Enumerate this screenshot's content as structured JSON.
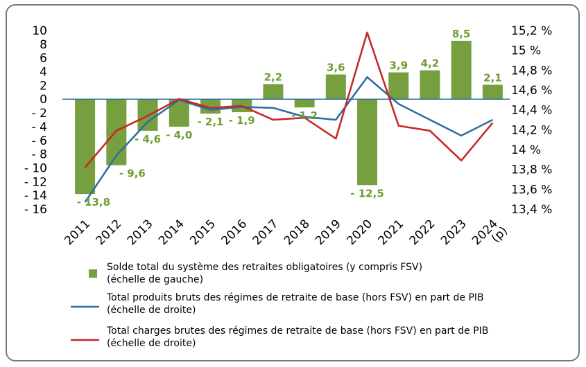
{
  "chart_data": {
    "type": "bar",
    "categories": [
      "2011",
      "2012",
      "2013",
      "2014",
      "2015",
      "2016",
      "2017",
      "2018",
      "2019",
      "2020",
      "2021",
      "2022",
      "2023",
      "2024"
    ],
    "category_sublabels": [
      "",
      "",
      "",
      "",
      "",
      "",
      "",
      "",
      "",
      "",
      "",
      "",
      "",
      "(p)"
    ],
    "bars": {
      "name": "Solde total du système des retraites obligatoires (y compris FSV)",
      "name_line2": "(échelle de gauche)",
      "color": "#76a03f",
      "values": [
        -13.8,
        -9.6,
        -4.6,
        -4.0,
        -2.1,
        -1.9,
        2.2,
        -1.2,
        3.6,
        -12.5,
        3.9,
        4.2,
        8.5,
        2.1
      ],
      "labels": [
        "- 13,8",
        "- 9,6",
        "- 4,6",
        "- 4,0",
        "- 2,1",
        "- 1,9",
        "2,2",
        "- 1,2",
        "3,6",
        "- 12,5",
        "3,9",
        "4,2",
        "8,5",
        "2,1"
      ],
      "label_color": "#6e9c34"
    },
    "lines": [
      {
        "name": "Total produits bruts des régimes de retraite de base (hors FSV) en part de PIB",
        "name_line2": "(échelle de droite)",
        "color": "#2f6f9f",
        "values": [
          13.47,
          13.94,
          14.28,
          14.5,
          14.4,
          14.43,
          14.42,
          14.33,
          14.3,
          14.73,
          14.46,
          14.3,
          14.14,
          14.3
        ]
      },
      {
        "name": "Total charges brutes des régimes de retraite de base (hors FSV) en part de PIB",
        "name_line2": "(échelle de droite)",
        "color": "#c62828",
        "values": [
          13.82,
          14.19,
          14.34,
          14.51,
          14.42,
          14.44,
          14.3,
          14.32,
          14.11,
          15.18,
          14.24,
          14.19,
          13.89,
          14.27
        ]
      }
    ],
    "y_left": {
      "ylim": [
        -16,
        10
      ],
      "ticks": [
        10,
        8,
        6,
        4,
        2,
        0,
        -2,
        -4,
        -6,
        -8,
        -10,
        -12,
        -14,
        -16
      ],
      "tick_labels": [
        "10",
        "8",
        "6",
        "4",
        "2",
        "0",
        "- 2",
        "- 4",
        "- 6",
        "- 8",
        "- 10",
        "- 12",
        "- 14",
        "- 16"
      ]
    },
    "y_right": {
      "ylim": [
        13.4,
        15.2
      ],
      "ticks": [
        15.2,
        15.0,
        14.8,
        14.6,
        14.4,
        14.2,
        14.0,
        13.8,
        13.6,
        13.4
      ],
      "tick_labels": [
        "15,2 %",
        "15 %",
        "14,8 %",
        "14,6 %",
        "14,4 %",
        "14,2 %",
        "14 %",
        "13,8 %",
        "13,6 %",
        "13,4 %"
      ]
    },
    "grid": false,
    "zero_line_color": "#2f6f9f",
    "legend_position": "bottom"
  }
}
